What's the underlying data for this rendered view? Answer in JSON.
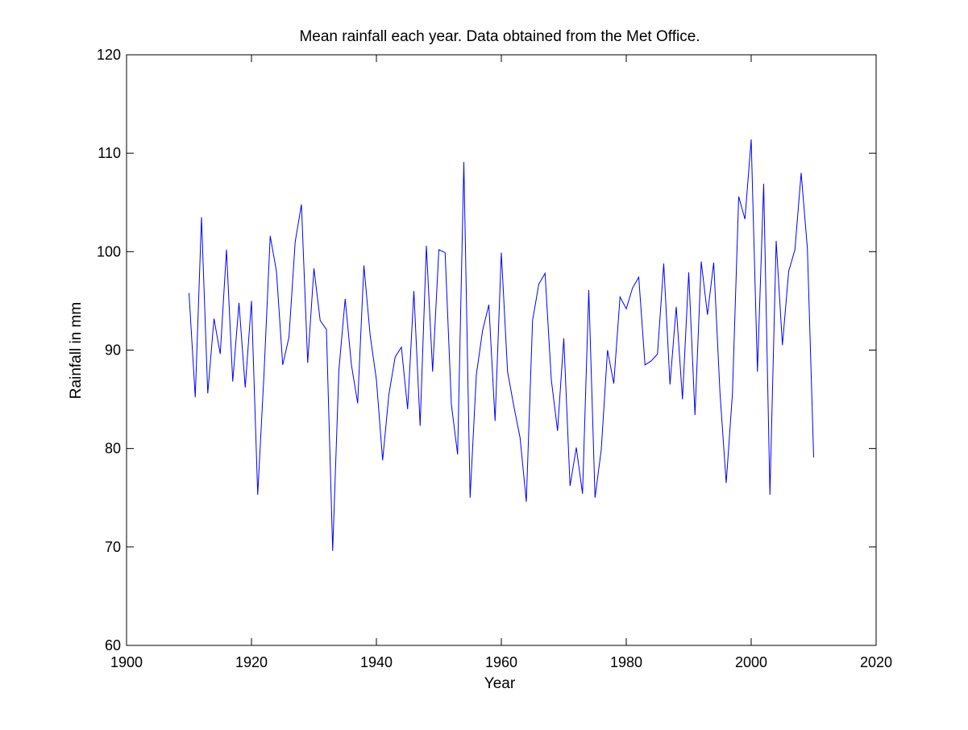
{
  "chart_data": {
    "type": "line",
    "title": "Mean rainfall each year. Data obtained from the Met Office.",
    "xlabel": "Year",
    "ylabel": "Rainfall in mm",
    "xlim": [
      1900,
      2020
    ],
    "ylim": [
      60,
      120
    ],
    "xticks": [
      1900,
      1920,
      1940,
      1960,
      1980,
      2000,
      2020
    ],
    "yticks": [
      60,
      70,
      80,
      90,
      100,
      110,
      120
    ],
    "grid": false,
    "line_color": "#0000ff",
    "series": [
      {
        "x": [
          1910,
          1911,
          1912,
          1913,
          1914,
          1915,
          1916,
          1917,
          1918,
          1919,
          1920,
          1921,
          1922,
          1923,
          1924,
          1925,
          1926,
          1927,
          1928,
          1929,
          1930,
          1931,
          1932,
          1933,
          1934,
          1935,
          1936,
          1937,
          1938,
          1939,
          1940,
          1941,
          1942,
          1943,
          1944,
          1945,
          1946,
          1947,
          1948,
          1949,
          1950,
          1951,
          1952,
          1953,
          1954,
          1955,
          1956,
          1957,
          1958,
          1959,
          1960,
          1961,
          1962,
          1963,
          1964,
          1965,
          1966,
          1967,
          1968,
          1969,
          1970,
          1971,
          1972,
          1973,
          1974,
          1975,
          1976,
          1977,
          1978,
          1979,
          1980,
          1981,
          1982,
          1983,
          1984,
          1985,
          1986,
          1987,
          1988,
          1989,
          1990,
          1991,
          1992,
          1993,
          1994,
          1995,
          1996,
          1997,
          1998,
          1999,
          2000,
          2001,
          2002,
          2003,
          2004,
          2005,
          2006,
          2007,
          2008,
          2009,
          2010
        ],
        "values": [
          95.8,
          85.2,
          103.5,
          85.6,
          93.2,
          89.6,
          100.2,
          86.8,
          94.8,
          86.2,
          95.0,
          75.3,
          87.5,
          101.6,
          98.0,
          88.5,
          91.3,
          101.0,
          104.8,
          88.7,
          98.3,
          93.0,
          92.1,
          69.6,
          88.0,
          95.2,
          88.5,
          84.6,
          98.6,
          91.5,
          87.0,
          78.8,
          85.5,
          89.3,
          90.3,
          84.0,
          96.0,
          82.3,
          100.6,
          87.8,
          100.2,
          99.9,
          84.5,
          79.4,
          109.1,
          75.0,
          87.5,
          92.0,
          94.6,
          82.8,
          99.9,
          87.8,
          84.3,
          81.1,
          74.6,
          93.0,
          96.7,
          97.8,
          87.0,
          81.8,
          91.2,
          76.2,
          80.1,
          75.4,
          96.1,
          75.0,
          79.9,
          90.0,
          86.6,
          95.4,
          94.2,
          96.3,
          97.4,
          88.5,
          88.9,
          89.6,
          98.8,
          86.5,
          94.4,
          85.0,
          97.9,
          83.4,
          99.0,
          93.6,
          98.9,
          85.7,
          76.5,
          85.6,
          105.6,
          103.3,
          111.4,
          87.8,
          106.9,
          75.3,
          101.1,
          90.5,
          98.0,
          100.2,
          108.0,
          100.3,
          79.1
        ]
      }
    ]
  }
}
